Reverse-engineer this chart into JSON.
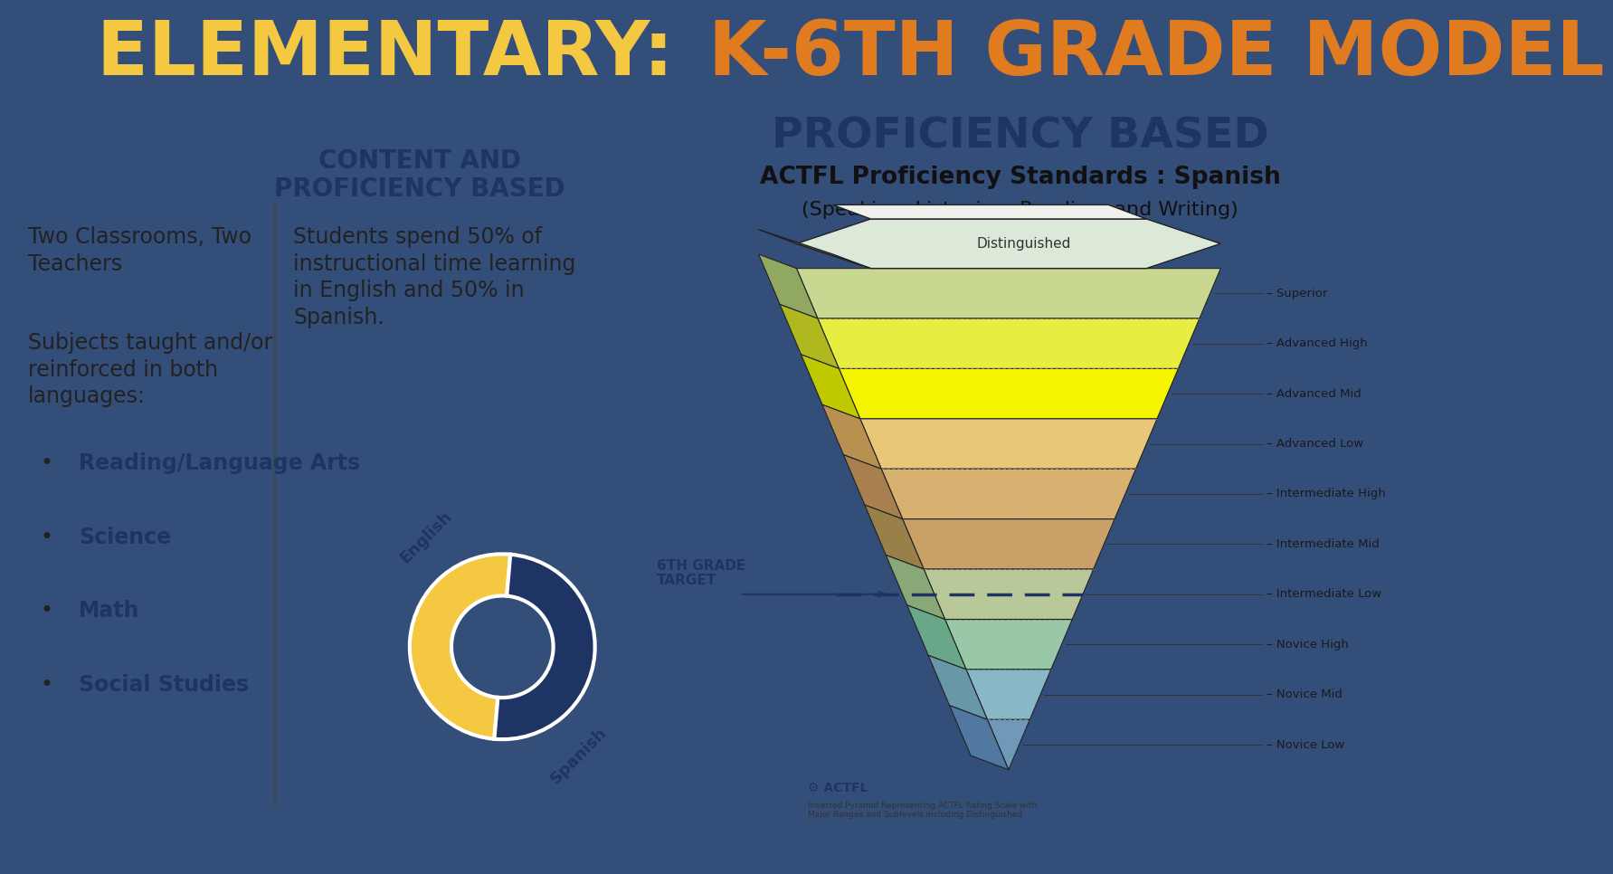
{
  "title_text1": "ELEMENTARY: ",
  "title_text2": "K-6TH GRADE MODEL",
  "title_bg": "#344e7a",
  "title_color1": "#f5c842",
  "title_color2": "#e07b20",
  "left_panel_bg": "#ffffff",
  "right_panel_bg": "#f5a820",
  "bottom_bar_bg": "#f5c842",
  "section_title": "CONTENT AND\nPROFICIENCY BASED",
  "section_title_color": "#1e3464",
  "bullet_items": [
    "Reading/Language Arts",
    "Science",
    "Math",
    "Social Studies"
  ],
  "donut_colors": [
    "#f5c842",
    "#1e3464"
  ],
  "donut_labels": [
    "English",
    "Spanish"
  ],
  "proficiency_title": "PROFICIENCY BASED",
  "proficiency_subtitle1": "ACTFL Proficiency Standards : Spanish",
  "proficiency_subtitle2": "(Speaking, Listening, Reading, and Writing)",
  "proficiency_title_color": "#1e3464",
  "pyramid_levels": [
    "Distinguished",
    "Superior",
    "Advanced High",
    "Advanced Mid",
    "Advanced Low",
    "Intermediate High",
    "Intermediate Mid",
    "Intermediate Low",
    "Novice High",
    "Novice Mid",
    "Novice Low"
  ],
  "pyramid_colors_front": [
    "#c8d8a0",
    "#e8f040",
    "#f5f500",
    "#f5f500",
    "#d4b878",
    "#d4a868",
    "#c89858",
    "#b0c888",
    "#98c898",
    "#88b8c8",
    "#78a8c0"
  ],
  "pyramid_colors_left": [
    "#a0b870",
    "#c0c830",
    "#d8d800",
    "#d8d800",
    "#b89848",
    "#b88848",
    "#a87840",
    "#88a870",
    "#78a878",
    "#6898a8",
    "#5888a8"
  ],
  "grade_target_label": "6TH GRADE\nTARGET",
  "grade_target_color": "#1e3464",
  "divider_color": "#333333",
  "text_color_dark": "#1e3464",
  "text_color_body": "#222222"
}
